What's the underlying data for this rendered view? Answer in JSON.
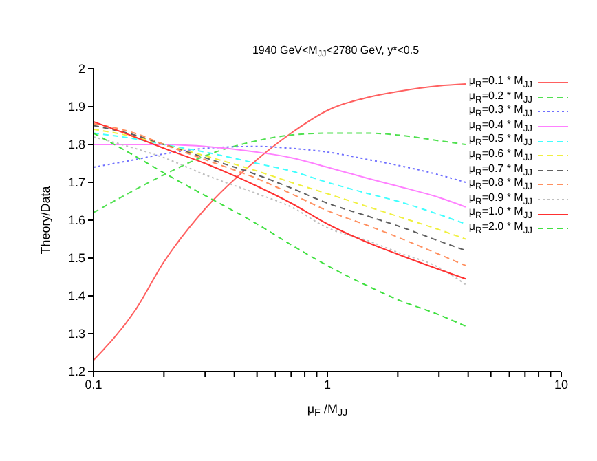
{
  "chart_data": {
    "type": "line",
    "title": "1940 GeV<M$_{JJ}$<2780 GeV, y*<0.5",
    "xlabel": "μ$_{F}$ /M$_{JJ}$",
    "ylabel": "Theory/Data",
    "log": "x",
    "grid": false,
    "legend": "top right",
    "marker": "none",
    "x": [
      0.1,
      0.15,
      0.2,
      0.3,
      0.5,
      0.7,
      1,
      1.5,
      2,
      3,
      3.9
    ],
    "xlim": [
      0.1,
      10
    ],
    "xticks": [
      0.1,
      {
        "value": 0.2,
        "label": null
      },
      {
        "value": 0.3,
        "label": null
      },
      {
        "value": 0.4,
        "label": null
      },
      {
        "value": 0.5,
        "label": null
      },
      {
        "value": 0.6,
        "label": null
      },
      {
        "value": 0.7,
        "label": null
      },
      {
        "value": 0.8,
        "label": null
      },
      {
        "value": 0.9,
        "label": null
      },
      1,
      {
        "value": 2,
        "label": null
      },
      {
        "value": 3,
        "label": null
      },
      {
        "value": 4,
        "label": null
      },
      {
        "value": 5,
        "label": null
      },
      {
        "value": 6,
        "label": null
      },
      {
        "value": 7,
        "label": null
      },
      {
        "value": 8,
        "label": null
      },
      {
        "value": 9,
        "label": null
      },
      10
    ],
    "ylim": [
      1.2,
      2
    ],
    "yticks": [
      1.2,
      1.3,
      1.4,
      1.5,
      1.6,
      1.7,
      1.8,
      1.9,
      2
    ],
    "series": [
      {
        "name": "μ$_{R}$=0.1 * M$_{JJ}$",
        "color": "#ff6060",
        "line_style": "solid",
        "values": [
          1.23,
          1.36,
          1.49,
          1.63,
          1.76,
          1.83,
          1.89,
          1.925,
          1.94,
          1.955,
          1.96
        ]
      },
      {
        "name": "μ$_{R}$=0.2 * M$_{JJ}$",
        "color": "#50e050",
        "line_style": "dashed",
        "values": [
          1.62,
          1.68,
          1.72,
          1.77,
          1.81,
          1.825,
          1.83,
          1.83,
          1.825,
          1.81,
          1.8
        ]
      },
      {
        "name": "μ$_{R}$=0.3 * M$_{JJ}$",
        "color": "#7070ff",
        "line_style": "dotted",
        "values": [
          1.74,
          1.76,
          1.775,
          1.79,
          1.795,
          1.79,
          1.78,
          1.76,
          1.745,
          1.72,
          1.7
        ]
      },
      {
        "name": "μ$_{R}$=0.4 * M$_{JJ}$",
        "color": "#ff80ff",
        "line_style": "solid",
        "values": [
          1.8,
          1.8,
          1.8,
          1.795,
          1.78,
          1.765,
          1.74,
          1.71,
          1.69,
          1.66,
          1.635
        ]
      },
      {
        "name": "μ$_{R}$=0.5 * M$_{JJ}$",
        "color": "#40ffff",
        "line_style": "dashed",
        "values": [
          1.83,
          1.815,
          1.8,
          1.78,
          1.75,
          1.73,
          1.7,
          1.67,
          1.65,
          1.615,
          1.59
        ]
      },
      {
        "name": "μ$_{R}$=0.6 * M$_{JJ}$",
        "color": "#f0f040",
        "line_style": "dashed",
        "values": [
          1.84,
          1.82,
          1.8,
          1.77,
          1.73,
          1.7,
          1.67,
          1.635,
          1.61,
          1.575,
          1.55
        ]
      },
      {
        "name": "μ$_{R}$=0.7 * M$_{JJ}$",
        "color": "#606060",
        "line_style": "dashed",
        "values": [
          1.85,
          1.825,
          1.8,
          1.765,
          1.72,
          1.685,
          1.645,
          1.61,
          1.585,
          1.545,
          1.52
        ]
      },
      {
        "name": "μ$_{R}$=0.8 * M$_{JJ}$",
        "color": "#ff9060",
        "line_style": "dashed",
        "values": [
          1.855,
          1.83,
          1.8,
          1.76,
          1.71,
          1.67,
          1.625,
          1.585,
          1.555,
          1.51,
          1.48
        ]
      },
      {
        "name": "μ$_{R}$=0.9 * M$_{JJ}$",
        "color": "#c0c0c0",
        "line_style": "dotted",
        "values": [
          1.82,
          1.79,
          1.765,
          1.72,
          1.67,
          1.635,
          1.58,
          1.545,
          1.515,
          1.475,
          1.43
        ]
      },
      {
        "name": "μ$_{R}$=1.0 * M$_{JJ}$",
        "color": "#ff3030",
        "line_style": "solid",
        "values": [
          1.86,
          1.82,
          1.79,
          1.75,
          1.69,
          1.645,
          1.59,
          1.54,
          1.51,
          1.47,
          1.445
        ]
      },
      {
        "name": "μ$_{R}$=2.0 * M$_{JJ}$",
        "color": "#40e040",
        "line_style": "dashed",
        "values": [
          1.83,
          1.77,
          1.725,
          1.665,
          1.59,
          1.535,
          1.48,
          1.425,
          1.39,
          1.35,
          1.32
        ]
      }
    ]
  }
}
